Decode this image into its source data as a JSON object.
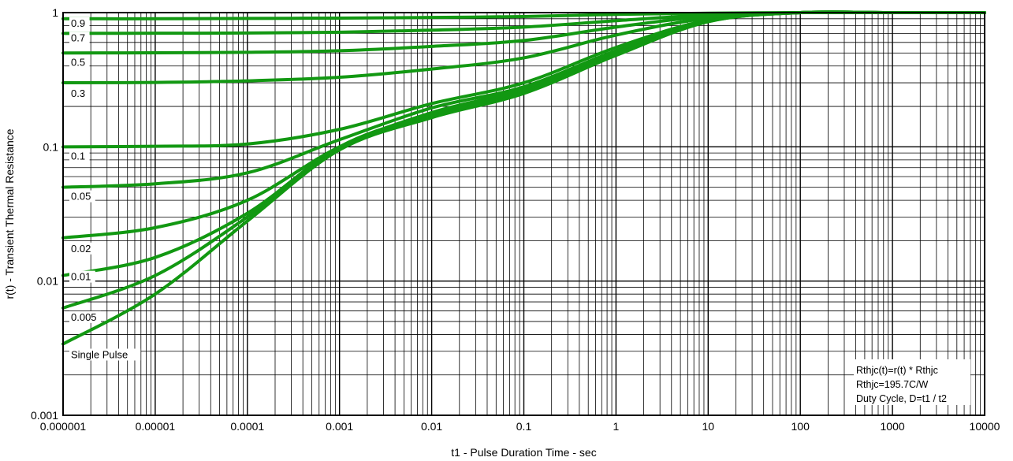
{
  "chart_data": {
    "type": "line",
    "xlabel": "t1 - Pulse Duration Time - sec",
    "ylabel": "r(t) - Transient Thermal Resistance",
    "x_scale": "log",
    "y_scale": "log",
    "xlim": [
      1e-06,
      10000
    ],
    "ylim": [
      0.001,
      1
    ],
    "x_ticks": [
      {
        "value": 1e-06,
        "label": "0.000001"
      },
      {
        "value": 1e-05,
        "label": "0.00001"
      },
      {
        "value": 0.0001,
        "label": "0.0001"
      },
      {
        "value": 0.001,
        "label": "0.001"
      },
      {
        "value": 0.01,
        "label": "0.01"
      },
      {
        "value": 0.1,
        "label": "0.1"
      },
      {
        "value": 1,
        "label": "1"
      },
      {
        "value": 10,
        "label": "10"
      },
      {
        "value": 100,
        "label": "100"
      },
      {
        "value": 1000,
        "label": "1000"
      },
      {
        "value": 10000,
        "label": "10000"
      }
    ],
    "y_ticks": [
      {
        "value": 0.001,
        "label": "0.001"
      },
      {
        "value": 0.01,
        "label": "0.01"
      },
      {
        "value": 0.1,
        "label": "0.1"
      },
      {
        "value": 1,
        "label": "1"
      }
    ],
    "grid": true,
    "line_color": "#129812",
    "grid_color": "#000000",
    "x": [
      1e-06,
      1e-05,
      0.0001,
      0.001,
      0.01,
      0.1,
      1,
      10,
      100,
      1000,
      10000
    ],
    "series": [
      {
        "name": "0.9",
        "values": [
          0.9,
          0.9,
          0.905,
          0.91,
          0.92,
          0.935,
          0.97,
          0.99,
          1.0,
          1.0,
          1.0
        ]
      },
      {
        "name": "0.7",
        "values": [
          0.7,
          0.702,
          0.705,
          0.715,
          0.74,
          0.78,
          0.87,
          0.96,
          1.0,
          1.0,
          1.0
        ]
      },
      {
        "name": "0.5",
        "values": [
          0.5,
          0.502,
          0.506,
          0.52,
          0.56,
          0.62,
          0.78,
          0.94,
          1.0,
          1.0,
          1.0
        ]
      },
      {
        "name": "0.3",
        "values": [
          0.3,
          0.302,
          0.31,
          0.33,
          0.38,
          0.46,
          0.68,
          0.91,
          1.0,
          1.0,
          1.0
        ]
      },
      {
        "name": "0.1",
        "values": [
          0.1,
          0.101,
          0.105,
          0.135,
          0.21,
          0.3,
          0.55,
          0.88,
          1.0,
          1.0,
          1.0
        ]
      },
      {
        "name": "0.05",
        "values": [
          0.05,
          0.053,
          0.064,
          0.113,
          0.195,
          0.28,
          0.52,
          0.87,
          1.0,
          1.0,
          1.0
        ]
      },
      {
        "name": "0.02",
        "values": [
          0.021,
          0.025,
          0.04,
          0.1,
          0.18,
          0.27,
          0.5,
          0.86,
          1.0,
          1.0,
          1.0
        ]
      },
      {
        "name": "0.01",
        "values": [
          0.011,
          0.015,
          0.032,
          0.1,
          0.175,
          0.26,
          0.49,
          0.86,
          1.0,
          1.0,
          1.0
        ]
      },
      {
        "name": "0.005",
        "values": [
          0.0063,
          0.011,
          0.03,
          0.097,
          0.17,
          0.255,
          0.485,
          0.86,
          1.0,
          1.0,
          1.0
        ]
      },
      {
        "name": "Single Pulse",
        "values": [
          0.0034,
          0.008,
          0.028,
          0.095,
          0.165,
          0.25,
          0.48,
          0.855,
          1.0,
          1.0,
          1.0
        ]
      }
    ],
    "annotation_lines": [
      "Rthjc(t)=r(t) * Rthjc",
      "Rthjc=195.7C/W",
      "Duty Cycle, D=t1 /  t2"
    ]
  }
}
